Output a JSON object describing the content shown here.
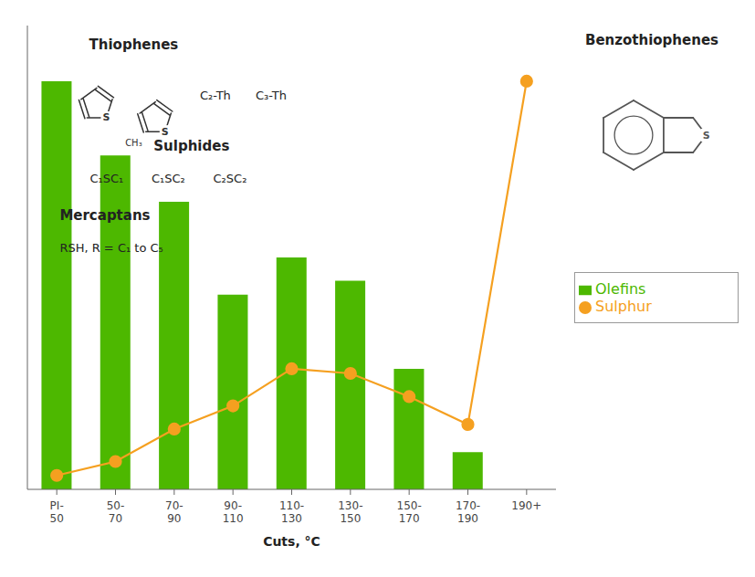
{
  "chart_data": {
    "type": "bar",
    "categories": [
      "PI-\n50",
      "50-\n70",
      "70-\n90",
      "90-\n110",
      "110-\n130",
      "130-\n150",
      "150-\n170",
      "170-\n190",
      "190+"
    ],
    "xlabel": "Cuts, °C",
    "ylim": [
      0,
      100
    ],
    "tick_labels": "x",
    "grid": false,
    "legend": "right",
    "series": [
      {
        "name": "Olefins",
        "type": "bar",
        "color": "#4db800",
        "values": [
          88,
          72,
          62,
          42,
          50,
          45,
          26,
          8,
          0
        ]
      },
      {
        "name": "Sulphur",
        "type": "line",
        "color": "#f5a020",
        "marker": "circle",
        "values": [
          3,
          6,
          13,
          18,
          26,
          25,
          20,
          14,
          88
        ]
      }
    ],
    "annotations": [
      "Thiophenes",
      "C₂-Th",
      "C₃-Th",
      "Sulphides",
      "C₁SC₁",
      "C₁SC₂",
      "C₂SC₂",
      "Mercaptans",
      "RSH, R = C₁ to C₅",
      "Benzothiophenes",
      "S",
      "S",
      "CH₃",
      "S"
    ]
  }
}
